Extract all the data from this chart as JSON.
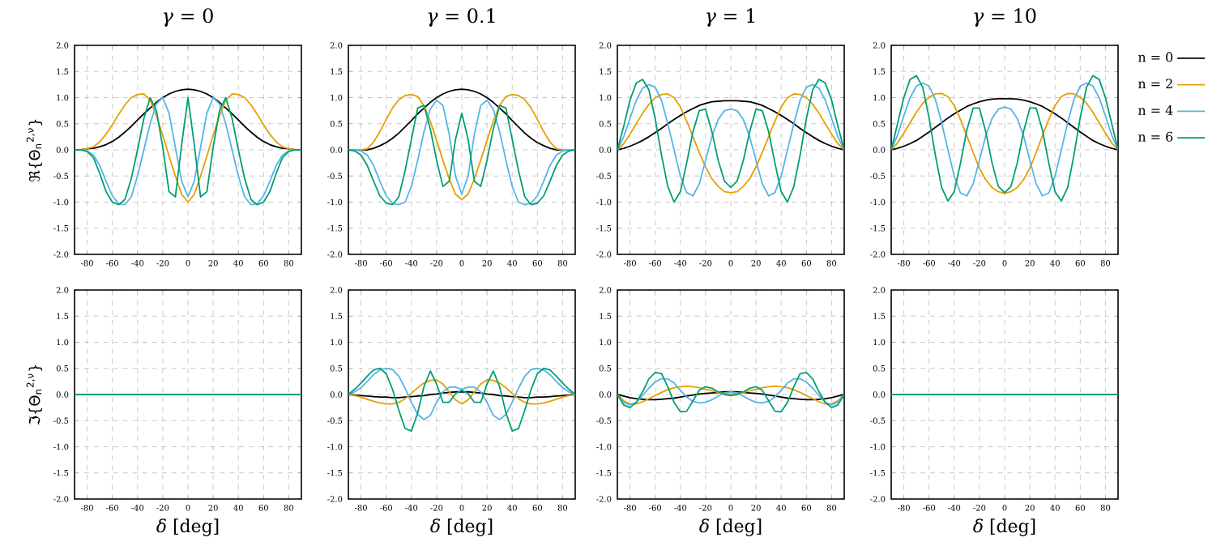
{
  "chart_data": [
    {
      "type": "line",
      "title": "*γ* = 0",
      "ylabel": "ℜ{Θ$_{n}$$^{2,ν}$}",
      "grid": true,
      "xlim": [
        -90,
        90
      ],
      "ylim": [
        -2,
        2
      ],
      "xticks": [
        -80,
        -60,
        -40,
        -20,
        0,
        20,
        40,
        60,
        80
      ],
      "yticks": [
        {
          "value": -2,
          "label": "-2.0"
        },
        {
          "value": -1.5,
          "label": "-1.5"
        },
        {
          "value": -1,
          "label": "-1.0"
        },
        {
          "value": -0.5,
          "label": "-0.5"
        },
        {
          "value": 0,
          "label": "0.0"
        },
        {
          "value": 0.5,
          "label": "0.5"
        },
        {
          "value": 1,
          "label": "1.0"
        },
        {
          "value": 1.5,
          "label": "1.5"
        },
        {
          "value": 2,
          "label": "2.0"
        }
      ],
      "x": [
        -90,
        -85,
        -80,
        -75,
        -70,
        -65,
        -60,
        -55,
        -50,
        -45,
        -40,
        -35,
        -30,
        -25,
        -20,
        -15,
        -10,
        -5,
        0,
        5,
        10,
        15,
        20,
        25,
        30,
        35,
        40,
        45,
        50,
        55,
        60,
        65,
        70,
        75,
        80,
        85,
        90
      ],
      "series": [
        {
          "color": "#000000",
          "values": [
            0,
            0,
            0.02,
            0.03,
            0.06,
            0.1,
            0.16,
            0.24,
            0.34,
            0.45,
            0.57,
            0.69,
            0.8,
            0.91,
            1.0,
            1.07,
            1.12,
            1.15,
            1.16,
            1.15,
            1.12,
            1.07,
            1.0,
            0.91,
            0.8,
            0.69,
            0.57,
            0.45,
            0.34,
            0.24,
            0.16,
            0.1,
            0.06,
            0.03,
            0.02,
            0,
            0
          ]
        },
        {
          "color": "#e69f00",
          "values": [
            0,
            0,
            0.02,
            0.06,
            0.15,
            0.3,
            0.48,
            0.68,
            0.86,
            1.0,
            1.06,
            1.07,
            0.95,
            0.65,
            0.28,
            -0.12,
            -0.5,
            -0.85,
            -1.0,
            -0.85,
            -0.5,
            -0.12,
            0.28,
            0.65,
            0.95,
            1.07,
            1.06,
            1.0,
            0.86,
            0.68,
            0.48,
            0.3,
            0.15,
            0.06,
            0.02,
            0,
            0
          ]
        },
        {
          "color": "#56b4e9",
          "values": [
            0,
            0,
            -0.02,
            -0.1,
            -0.3,
            -0.6,
            -0.88,
            -1.03,
            -1.05,
            -0.9,
            -0.5,
            0.0,
            0.5,
            0.88,
            1.0,
            0.7,
            0.05,
            -0.6,
            -0.9,
            -0.6,
            0.05,
            0.7,
            1.0,
            0.88,
            0.5,
            0.0,
            -0.5,
            -0.9,
            -1.05,
            -1.03,
            -0.88,
            -0.6,
            -0.3,
            -0.1,
            -0.02,
            0,
            0
          ]
        },
        {
          "color": "#009e73",
          "values": [
            0,
            0,
            -0.03,
            -0.15,
            -0.45,
            -0.8,
            -1.0,
            -1.05,
            -0.95,
            -0.55,
            0.0,
            0.6,
            1.0,
            0.75,
            0.05,
            -0.8,
            -0.9,
            0.1,
            1.0,
            0.1,
            -0.9,
            -0.8,
            0.05,
            0.75,
            1.0,
            0.6,
            0.0,
            -0.55,
            -0.95,
            -1.05,
            -1.0,
            -0.8,
            -0.45,
            -0.15,
            -0.03,
            0,
            0
          ]
        }
      ]
    },
    {
      "type": "line",
      "title": "*γ* = 0.1",
      "grid": true,
      "xlim": [
        -90,
        90
      ],
      "ylim": [
        -2,
        2
      ],
      "xticks": [
        -80,
        -60,
        -40,
        -20,
        0,
        20,
        40,
        60,
        80
      ],
      "yticks": [
        {
          "value": -2,
          "label": "-2.0"
        },
        {
          "value": -1.5,
          "label": "-1.5"
        },
        {
          "value": -1,
          "label": "-1.0"
        },
        {
          "value": -0.5,
          "label": "-0.5"
        },
        {
          "value": 0,
          "label": "0.0"
        },
        {
          "value": 0.5,
          "label": "0.5"
        },
        {
          "value": 1,
          "label": "1.0"
        },
        {
          "value": 1.5,
          "label": "1.5"
        },
        {
          "value": 2,
          "label": "2.0"
        }
      ],
      "x": [
        -90,
        -85,
        -80,
        -75,
        -70,
        -65,
        -60,
        -55,
        -50,
        -45,
        -40,
        -35,
        -30,
        -25,
        -20,
        -15,
        -10,
        -5,
        0,
        5,
        10,
        15,
        20,
        25,
        30,
        35,
        40,
        45,
        50,
        55,
        60,
        65,
        70,
        75,
        80,
        85,
        90
      ],
      "series": [
        {
          "color": "#000000",
          "values": [
            0,
            0,
            0,
            0,
            0.03,
            0.08,
            0.14,
            0.22,
            0.32,
            0.44,
            0.56,
            0.69,
            0.8,
            0.91,
            1.0,
            1.07,
            1.12,
            1.15,
            1.16,
            1.15,
            1.12,
            1.07,
            1.0,
            0.91,
            0.8,
            0.69,
            0.56,
            0.44,
            0.32,
            0.22,
            0.14,
            0.08,
            0.03,
            0,
            0,
            0,
            0
          ]
        },
        {
          "color": "#e69f00",
          "values": [
            0,
            0,
            0,
            0.02,
            0.15,
            0.35,
            0.58,
            0.8,
            0.96,
            1.04,
            1.06,
            1.02,
            0.85,
            0.55,
            0.18,
            -0.2,
            -0.55,
            -0.85,
            -0.95,
            -0.85,
            -0.55,
            -0.2,
            0.18,
            0.55,
            0.85,
            1.02,
            1.06,
            1.04,
            0.96,
            0.8,
            0.58,
            0.35,
            0.15,
            0.02,
            0,
            0,
            0
          ]
        },
        {
          "color": "#56b4e9",
          "values": [
            0,
            0,
            -0.02,
            -0.1,
            -0.3,
            -0.6,
            -0.88,
            -1.02,
            -1.05,
            -1.0,
            -0.7,
            -0.2,
            0.35,
            0.78,
            0.95,
            0.85,
            0.3,
            -0.5,
            -0.85,
            -0.5,
            0.3,
            0.85,
            0.95,
            0.78,
            0.35,
            -0.2,
            -0.7,
            -1.0,
            -1.05,
            -1.02,
            -0.88,
            -0.6,
            -0.3,
            -0.1,
            -0.02,
            0,
            0
          ]
        },
        {
          "color": "#009e73",
          "values": [
            0,
            -0.02,
            -0.1,
            -0.3,
            -0.6,
            -0.88,
            -1.02,
            -1.05,
            -0.9,
            -0.4,
            0.2,
            0.8,
            0.85,
            0.4,
            -0.2,
            -0.7,
            -0.6,
            0.2,
            0.7,
            0.2,
            -0.6,
            -0.7,
            -0.2,
            0.4,
            0.85,
            0.8,
            0.2,
            -0.4,
            -0.9,
            -1.05,
            -1.02,
            -0.88,
            -0.6,
            -0.3,
            -0.1,
            -0.02,
            0
          ]
        }
      ]
    },
    {
      "type": "line",
      "title": "*γ* = 1",
      "grid": true,
      "xlim": [
        -90,
        90
      ],
      "ylim": [
        -2,
        2
      ],
      "xticks": [
        -80,
        -60,
        -40,
        -20,
        0,
        20,
        40,
        60,
        80
      ],
      "yticks": [
        {
          "value": -2,
          "label": "-2.0"
        },
        {
          "value": -1.5,
          "label": "-1.5"
        },
        {
          "value": -1,
          "label": "-1.0"
        },
        {
          "value": -0.5,
          "label": "-0.5"
        },
        {
          "value": 0,
          "label": "0.0"
        },
        {
          "value": 0.5,
          "label": "0.5"
        },
        {
          "value": 1,
          "label": "1.0"
        },
        {
          "value": 1.5,
          "label": "1.5"
        },
        {
          "value": 2,
          "label": "2.0"
        }
      ],
      "x": [
        -90,
        -85,
        -80,
        -75,
        -70,
        -65,
        -60,
        -55,
        -50,
        -45,
        -40,
        -35,
        -30,
        -25,
        -20,
        -15,
        -10,
        -5,
        0,
        5,
        10,
        15,
        20,
        25,
        30,
        35,
        40,
        45,
        50,
        55,
        60,
        65,
        70,
        75,
        80,
        85,
        90
      ],
      "series": [
        {
          "color": "#000000",
          "values": [
            0,
            0.03,
            0.07,
            0.12,
            0.18,
            0.25,
            0.33,
            0.41,
            0.5,
            0.58,
            0.66,
            0.73,
            0.79,
            0.85,
            0.89,
            0.92,
            0.93,
            0.94,
            0.94,
            0.94,
            0.93,
            0.92,
            0.89,
            0.85,
            0.79,
            0.73,
            0.66,
            0.58,
            0.5,
            0.41,
            0.33,
            0.25,
            0.18,
            0.12,
            0.07,
            0.03,
            0
          ]
        },
        {
          "color": "#e69f00",
          "values": [
            0,
            0.12,
            0.3,
            0.5,
            0.7,
            0.87,
            1.0,
            1.06,
            1.07,
            1.0,
            0.82,
            0.55,
            0.25,
            -0.05,
            -0.33,
            -0.55,
            -0.7,
            -0.8,
            -0.82,
            -0.8,
            -0.7,
            -0.55,
            -0.33,
            -0.05,
            0.25,
            0.55,
            0.82,
            1.0,
            1.07,
            1.06,
            1.0,
            0.87,
            0.7,
            0.5,
            0.3,
            0.12,
            0
          ]
        },
        {
          "color": "#56b4e9",
          "values": [
            0,
            0.25,
            0.6,
            0.95,
            1.18,
            1.25,
            1.2,
            0.95,
            0.5,
            0.0,
            -0.5,
            -0.82,
            -0.88,
            -0.65,
            -0.2,
            0.25,
            0.58,
            0.75,
            0.78,
            0.75,
            0.58,
            0.25,
            -0.2,
            -0.65,
            -0.88,
            -0.82,
            -0.5,
            0.0,
            0.5,
            0.95,
            1.2,
            1.25,
            1.18,
            0.95,
            0.6,
            0.25,
            0
          ]
        },
        {
          "color": "#009e73",
          "values": [
            0,
            0.45,
            0.95,
            1.28,
            1.35,
            1.15,
            0.6,
            -0.1,
            -0.7,
            -1.0,
            -0.8,
            -0.25,
            0.35,
            0.75,
            0.78,
            0.35,
            -0.2,
            -0.6,
            -0.72,
            -0.6,
            -0.2,
            0.35,
            0.78,
            0.75,
            0.35,
            -0.25,
            -0.8,
            -1.0,
            -0.7,
            -0.1,
            0.6,
            1.15,
            1.35,
            1.28,
            0.95,
            0.45,
            0
          ]
        }
      ]
    },
    {
      "type": "line",
      "title": "*γ* = 10",
      "grid": true,
      "legend": "right",
      "xlim": [
        -90,
        90
      ],
      "ylim": [
        -2,
        2
      ],
      "xticks": [
        -80,
        -60,
        -40,
        -20,
        0,
        20,
        40,
        60,
        80
      ],
      "yticks": [
        {
          "value": -2,
          "label": "-2.0"
        },
        {
          "value": -1.5,
          "label": "-1.5"
        },
        {
          "value": -1,
          "label": "-1.0"
        },
        {
          "value": -0.5,
          "label": "-0.5"
        },
        {
          "value": 0,
          "label": "0.0"
        },
        {
          "value": 0.5,
          "label": "0.5"
        },
        {
          "value": 1,
          "label": "1.0"
        },
        {
          "value": 1.5,
          "label": "1.5"
        },
        {
          "value": 2,
          "label": "2.0"
        }
      ],
      "x": [
        -90,
        -85,
        -80,
        -75,
        -70,
        -65,
        -60,
        -55,
        -50,
        -45,
        -40,
        -35,
        -30,
        -25,
        -20,
        -15,
        -10,
        -5,
        0,
        5,
        10,
        15,
        20,
        25,
        30,
        35,
        40,
        45,
        50,
        55,
        60,
        65,
        70,
        75,
        80,
        85,
        90
      ],
      "series": [
        {
          "name": "n = 0",
          "color": "#000000",
          "values": [
            0,
            0.03,
            0.07,
            0.12,
            0.18,
            0.26,
            0.34,
            0.43,
            0.52,
            0.61,
            0.69,
            0.76,
            0.83,
            0.88,
            0.92,
            0.95,
            0.97,
            0.98,
            0.98,
            0.98,
            0.97,
            0.95,
            0.92,
            0.88,
            0.83,
            0.76,
            0.69,
            0.61,
            0.52,
            0.43,
            0.34,
            0.26,
            0.18,
            0.12,
            0.07,
            0.03,
            0
          ]
        },
        {
          "name": "n = 2",
          "color": "#e69f00",
          "values": [
            0,
            0.13,
            0.32,
            0.52,
            0.72,
            0.89,
            1.01,
            1.07,
            1.08,
            1.02,
            0.85,
            0.58,
            0.27,
            -0.05,
            -0.35,
            -0.57,
            -0.72,
            -0.8,
            -0.83,
            -0.8,
            -0.72,
            -0.57,
            -0.35,
            -0.05,
            0.27,
            0.58,
            0.85,
            1.02,
            1.08,
            1.07,
            1.01,
            0.89,
            0.72,
            0.52,
            0.32,
            0.13,
            0
          ]
        },
        {
          "name": "n = 4",
          "color": "#56b4e9",
          "values": [
            0,
            0.28,
            0.65,
            1.0,
            1.22,
            1.28,
            1.22,
            0.97,
            0.52,
            0.0,
            -0.5,
            -0.83,
            -0.88,
            -0.65,
            -0.2,
            0.27,
            0.6,
            0.78,
            0.82,
            0.78,
            0.6,
            0.27,
            -0.2,
            -0.65,
            -0.88,
            -0.83,
            -0.5,
            0.0,
            0.52,
            0.97,
            1.22,
            1.28,
            1.22,
            1.0,
            0.65,
            0.28,
            0
          ]
        },
        {
          "name": "n = 6",
          "color": "#009e73",
          "values": [
            0,
            0.5,
            1.0,
            1.35,
            1.42,
            1.2,
            0.62,
            -0.1,
            -0.72,
            -0.98,
            -0.8,
            -0.25,
            0.38,
            0.8,
            0.8,
            0.35,
            -0.25,
            -0.7,
            -0.82,
            -0.7,
            -0.25,
            0.35,
            0.8,
            0.8,
            0.38,
            -0.25,
            -0.8,
            -0.98,
            -0.72,
            -0.1,
            0.62,
            1.2,
            1.42,
            1.35,
            1.0,
            0.5,
            0
          ]
        }
      ]
    },
    {
      "type": "line",
      "xlabel": "*δ* [deg]",
      "ylabel": "ℑ{Θ$_{n}$$^{2,ν}$}",
      "grid": true,
      "xlim": [
        -90,
        90
      ],
      "ylim": [
        -2,
        2
      ],
      "xticks": [
        -80,
        -60,
        -40,
        -20,
        0,
        20,
        40,
        60,
        80
      ],
      "yticks": [
        {
          "value": -2,
          "label": "-2.0"
        },
        {
          "value": -1.5,
          "label": "-1.5"
        },
        {
          "value": -1,
          "label": "-1.0"
        },
        {
          "value": -0.5,
          "label": "-0.5"
        },
        {
          "value": 0,
          "label": "0.0"
        },
        {
          "value": 0.5,
          "label": "0.5"
        },
        {
          "value": 1,
          "label": "1.0"
        },
        {
          "value": 1.5,
          "label": "1.5"
        },
        {
          "value": 2,
          "label": "2.0"
        }
      ],
      "x": [
        -90,
        90
      ],
      "series": [
        {
          "color": "#009e73",
          "values": [
            0,
            0
          ]
        }
      ]
    },
    {
      "type": "line",
      "xlabel": "*δ* [deg]",
      "grid": true,
      "xlim": [
        -90,
        90
      ],
      "ylim": [
        -2,
        2
      ],
      "xticks": [
        -80,
        -60,
        -40,
        -20,
        0,
        20,
        40,
        60,
        80
      ],
      "yticks": [
        {
          "value": -2,
          "label": "-2.0"
        },
        {
          "value": -1.5,
          "label": "-1.5"
        },
        {
          "value": -1,
          "label": "-1.0"
        },
        {
          "value": -0.5,
          "label": "-0.5"
        },
        {
          "value": 0,
          "label": "0.0"
        },
        {
          "value": 0.5,
          "label": "0.5"
        },
        {
          "value": 1,
          "label": "1.0"
        },
        {
          "value": 1.5,
          "label": "1.5"
        },
        {
          "value": 2,
          "label": "2.0"
        }
      ],
      "x": [
        -90,
        -85,
        -80,
        -75,
        -70,
        -65,
        -60,
        -55,
        -50,
        -45,
        -40,
        -35,
        -30,
        -25,
        -20,
        -15,
        -10,
        -5,
        0,
        5,
        10,
        15,
        20,
        25,
        30,
        35,
        40,
        45,
        50,
        55,
        60,
        65,
        70,
        75,
        80,
        85,
        90
      ],
      "series": [
        {
          "color": "#000000",
          "values": [
            0,
            -0.01,
            -0.02,
            -0.03,
            -0.04,
            -0.05,
            -0.05,
            -0.06,
            -0.06,
            -0.05,
            -0.04,
            -0.03,
            -0.02,
            0.0,
            0.01,
            0.03,
            0.04,
            0.05,
            0.05,
            0.05,
            0.04,
            0.03,
            0.01,
            0.0,
            -0.02,
            -0.03,
            -0.04,
            -0.05,
            -0.06,
            -0.06,
            -0.05,
            -0.05,
            -0.04,
            -0.03,
            -0.02,
            -0.01,
            0
          ]
        },
        {
          "color": "#e69f00",
          "values": [
            0,
            -0.02,
            -0.05,
            -0.09,
            -0.13,
            -0.16,
            -0.18,
            -0.18,
            -0.15,
            -0.08,
            0.02,
            0.13,
            0.22,
            0.27,
            0.28,
            0.2,
            0.05,
            -0.1,
            -0.18,
            -0.1,
            0.05,
            0.2,
            0.28,
            0.27,
            0.22,
            0.13,
            0.02,
            -0.08,
            -0.15,
            -0.18,
            -0.18,
            -0.16,
            -0.13,
            -0.09,
            -0.05,
            -0.02,
            0
          ]
        },
        {
          "color": "#56b4e9",
          "values": [
            0,
            0.05,
            0.13,
            0.25,
            0.38,
            0.47,
            0.5,
            0.48,
            0.35,
            0.12,
            -0.15,
            -0.38,
            -0.48,
            -0.4,
            -0.15,
            0.05,
            0.14,
            0.14,
            0.1,
            0.14,
            0.14,
            0.05,
            -0.15,
            -0.4,
            -0.48,
            -0.38,
            -0.15,
            0.12,
            0.35,
            0.48,
            0.5,
            0.47,
            0.38,
            0.25,
            0.13,
            0.05,
            0
          ]
        },
        {
          "color": "#009e73",
          "values": [
            0,
            0.1,
            0.22,
            0.35,
            0.47,
            0.5,
            0.4,
            0.1,
            -0.3,
            -0.65,
            -0.7,
            -0.35,
            0.15,
            0.45,
            0.2,
            -0.15,
            -0.15,
            0.02,
            0.08,
            0.02,
            -0.15,
            -0.15,
            0.2,
            0.45,
            0.15,
            -0.35,
            -0.7,
            -0.65,
            -0.3,
            0.1,
            0.4,
            0.5,
            0.47,
            0.35,
            0.22,
            0.1,
            0
          ]
        }
      ]
    },
    {
      "type": "line",
      "xlabel": "*δ* [deg]",
      "grid": true,
      "xlim": [
        -90,
        90
      ],
      "ylim": [
        -2,
        2
      ],
      "xticks": [
        -80,
        -60,
        -40,
        -20,
        0,
        20,
        40,
        60,
        80
      ],
      "yticks": [
        {
          "value": -2,
          "label": "-2.0"
        },
        {
          "value": -1.5,
          "label": "-1.5"
        },
        {
          "value": -1,
          "label": "-1.0"
        },
        {
          "value": -0.5,
          "label": "-0.5"
        },
        {
          "value": 0,
          "label": "0.0"
        },
        {
          "value": 0.5,
          "label": "0.5"
        },
        {
          "value": 1,
          "label": "1.0"
        },
        {
          "value": 1.5,
          "label": "1.5"
        },
        {
          "value": 2,
          "label": "2.0"
        }
      ],
      "x": [
        -90,
        -85,
        -80,
        -75,
        -70,
        -65,
        -60,
        -55,
        -50,
        -45,
        -40,
        -35,
        -30,
        -25,
        -20,
        -15,
        -10,
        -5,
        0,
        5,
        10,
        15,
        20,
        25,
        30,
        35,
        40,
        45,
        50,
        55,
        60,
        65,
        70,
        75,
        80,
        85,
        90
      ],
      "series": [
        {
          "color": "#000000",
          "values": [
            0,
            -0.03,
            -0.06,
            -0.08,
            -0.09,
            -0.1,
            -0.1,
            -0.09,
            -0.08,
            -0.07,
            -0.05,
            -0.03,
            -0.01,
            0.01,
            0.02,
            0.03,
            0.04,
            0.05,
            0.05,
            0.05,
            0.04,
            0.03,
            0.02,
            0.01,
            -0.01,
            -0.03,
            -0.05,
            -0.07,
            -0.08,
            -0.09,
            -0.1,
            -0.1,
            -0.09,
            -0.08,
            -0.06,
            -0.03,
            0
          ]
        },
        {
          "color": "#e69f00",
          "values": [
            0,
            -0.12,
            -0.18,
            -0.18,
            -0.14,
            -0.08,
            -0.02,
            0.04,
            0.09,
            0.13,
            0.15,
            0.16,
            0.15,
            0.13,
            0.1,
            0.07,
            0.04,
            0.02,
            0.01,
            0.02,
            0.04,
            0.07,
            0.1,
            0.13,
            0.15,
            0.16,
            0.15,
            0.13,
            0.09,
            0.04,
            -0.02,
            -0.08,
            -0.14,
            -0.18,
            -0.18,
            -0.12,
            0
          ]
        },
        {
          "color": "#56b4e9",
          "values": [
            0,
            -0.15,
            -0.2,
            -0.15,
            -0.02,
            0.12,
            0.24,
            0.3,
            0.3,
            0.22,
            0.08,
            -0.05,
            -0.13,
            -0.16,
            -0.15,
            -0.1,
            -0.03,
            0.03,
            0.05,
            0.03,
            -0.03,
            -0.1,
            -0.15,
            -0.16,
            -0.13,
            -0.05,
            0.08,
            0.22,
            0.3,
            0.3,
            0.24,
            0.12,
            -0.02,
            -0.15,
            -0.2,
            -0.15,
            0
          ]
        },
        {
          "color": "#009e73",
          "values": [
            0,
            -0.2,
            -0.25,
            -0.15,
            0.05,
            0.3,
            0.42,
            0.4,
            0.15,
            -0.15,
            -0.33,
            -0.32,
            -0.12,
            0.08,
            0.15,
            0.12,
            0.05,
            0.0,
            -0.02,
            0.0,
            0.05,
            0.12,
            0.15,
            0.08,
            -0.12,
            -0.32,
            -0.33,
            -0.15,
            0.15,
            0.4,
            0.42,
            0.3,
            0.05,
            -0.15,
            -0.25,
            -0.2,
            0
          ]
        }
      ]
    },
    {
      "type": "line",
      "xlabel": "*δ* [deg]",
      "grid": true,
      "xlim": [
        -90,
        90
      ],
      "ylim": [
        -2,
        2
      ],
      "xticks": [
        -80,
        -60,
        -40,
        -20,
        0,
        20,
        40,
        60,
        80
      ],
      "yticks": [
        {
          "value": -2,
          "label": "-2.0"
        },
        {
          "value": -1.5,
          "label": "-1.5"
        },
        {
          "value": -1,
          "label": "-1.0"
        },
        {
          "value": -0.5,
          "label": "-0.5"
        },
        {
          "value": 0,
          "label": "0.0"
        },
        {
          "value": 0.5,
          "label": "0.5"
        },
        {
          "value": 1,
          "label": "1.0"
        },
        {
          "value": 1.5,
          "label": "1.5"
        },
        {
          "value": 2,
          "label": "2.0"
        }
      ],
      "x": [
        -90,
        90
      ],
      "series": [
        {
          "color": "#009e73",
          "values": [
            0,
            0
          ]
        }
      ]
    }
  ]
}
